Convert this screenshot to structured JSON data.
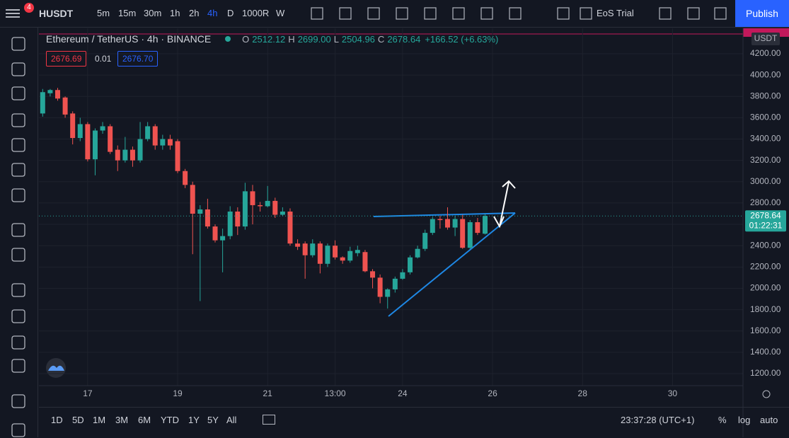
{
  "toolbar": {
    "symbol": "HUSDT",
    "badge": "4",
    "intervals": [
      "5m",
      "15m",
      "30m",
      "1h",
      "2h",
      "4h",
      "D",
      "1000R",
      "W"
    ],
    "trial": "EoS Trial",
    "publish": "Publish"
  },
  "legend": {
    "title": "Ethereum / TetherUS · 4h · BINANCE",
    "ohlc": [
      {
        "key": "O",
        "value": "2512.12"
      },
      {
        "key": "H",
        "value": "2699.00"
      },
      {
        "key": "L",
        "value": "2504.96"
      },
      {
        "key": "C",
        "value": "2678.64"
      }
    ],
    "change": "+166.52 (+6.63%)",
    "bid": "2676.69",
    "spread": "0.01",
    "ask": "2676.70"
  },
  "chart_data": {
    "type": "candlestick",
    "currency": "USDT",
    "open": [
      3640,
      3830,
      3860,
      3790,
      3640,
      3410,
      3540,
      3210,
      3480,
      3520,
      3300,
      3200,
      3300,
      3200,
      3400,
      3520,
      3340,
      3400,
      3380,
      3100,
      2970,
      2700,
      2740,
      2580,
      2450,
      2490,
      2720,
      2580,
      2910,
      2780,
      2770,
      2820,
      2690,
      2720,
      2420,
      2420,
      2310,
      2420,
      2230,
      2400,
      2290,
      2260,
      2330,
      2340,
      2160,
      2100,
      1920,
      1990,
      2090,
      2150,
      2290,
      2370,
      2520,
      2650,
      2650,
      2570,
      2650,
      2380,
      2620,
      2512.12
    ],
    "high": [
      3870,
      3870,
      3880,
      3800,
      3660,
      3600,
      3560,
      3500,
      3560,
      3540,
      3340,
      3420,
      3330,
      3560,
      3560,
      3540,
      3440,
      3440,
      3400,
      3120,
      3000,
      2780,
      2840,
      2600,
      2560,
      2770,
      2760,
      2990,
      2970,
      2810,
      2960,
      2850,
      2760,
      2750,
      2460,
      2440,
      2460,
      2440,
      2420,
      2450,
      2300,
      2390,
      2400,
      2360,
      2180,
      2130,
      2000,
      2110,
      2180,
      2310,
      2400,
      2550,
      2670,
      2680,
      2760,
      2680,
      2690,
      2640,
      2660,
      2699
    ],
    "low": [
      3610,
      3800,
      3760,
      3600,
      3350,
      3380,
      3190,
      3060,
      3450,
      3260,
      3100,
      3180,
      3140,
      3180,
      3380,
      3300,
      3300,
      3300,
      3080,
      2940,
      2320,
      1880,
      2560,
      2430,
      2150,
      2460,
      2500,
      2550,
      2600,
      2720,
      2760,
      2660,
      2680,
      2400,
      2360,
      2090,
      2290,
      2140,
      2200,
      2270,
      2230,
      2240,
      2300,
      2150,
      2000,
      1860,
      1810,
      1960,
      2080,
      2130,
      2280,
      2350,
      2500,
      2560,
      2550,
      2490,
      2370,
      2370,
      2500,
      2504.96
    ],
    "close": [
      3840,
      3860,
      3780,
      3630,
      3410,
      3540,
      3210,
      3480,
      3520,
      3280,
      3200,
      3300,
      3200,
      3400,
      3520,
      3340,
      3400,
      3340,
      3100,
      2970,
      2700,
      2740,
      2580,
      2450,
      2490,
      2720,
      2580,
      2910,
      2780,
      2770,
      2820,
      2690,
      2720,
      2420,
      2390,
      2310,
      2420,
      2230,
      2400,
      2290,
      2260,
      2350,
      2360,
      2160,
      2100,
      1920,
      1990,
      2090,
      2150,
      2290,
      2370,
      2520,
      2650,
      2640,
      2570,
      2650,
      2380,
      2620,
      2520,
      2678.64
    ],
    "colors": {
      "up": "#26a69a",
      "down": "#ef5350"
    },
    "last_price": 2678.64,
    "countdown": "01:22:31",
    "ylim": [
      1087,
      4439
    ],
    "yticks": [
      {
        "value": 1200,
        "label": "1200.00"
      },
      {
        "value": 1400,
        "label": "1400.00"
      },
      {
        "value": 1600,
        "label": "1600.00"
      },
      {
        "value": 1800,
        "label": "1800.00"
      },
      {
        "value": 2000,
        "label": "2000.00"
      },
      {
        "value": 2200,
        "label": "2200.00"
      },
      {
        "value": 2400,
        "label": "2400.00"
      },
      {
        "value": 2600,
        "label": "2600.00"
      },
      {
        "value": 2800,
        "label": "2800.00"
      },
      {
        "value": 3000,
        "label": "3000.00"
      },
      {
        "value": 3200,
        "label": "3200.00"
      },
      {
        "value": 3400,
        "label": "3400.00"
      },
      {
        "value": 3600,
        "label": "3600.00"
      },
      {
        "value": 3800,
        "label": "3800.00"
      },
      {
        "value": 4000,
        "label": "4000.00"
      },
      {
        "value": 4200,
        "label": "4200.00"
      }
    ],
    "xlim": [
      -0.5,
      93.4
    ],
    "xticks": [
      {
        "value": 6,
        "label": "17"
      },
      {
        "value": 18,
        "label": "19"
      },
      {
        "value": 30,
        "label": "21"
      },
      {
        "value": 39,
        "label": "13:00"
      },
      {
        "value": 48,
        "label": "24"
      },
      {
        "value": 60,
        "label": "26"
      },
      {
        "value": 72,
        "label": "28"
      },
      {
        "value": 84,
        "label": "30"
      }
    ],
    "grid": true
  },
  "bottom": {
    "ranges": [
      "1D",
      "5D",
      "1M",
      "3M",
      "6M",
      "YTD",
      "1Y",
      "5Y",
      "All"
    ],
    "clock": "23:37:28 (UTC+1)",
    "percent": "%",
    "log": "log",
    "auto": "auto"
  }
}
